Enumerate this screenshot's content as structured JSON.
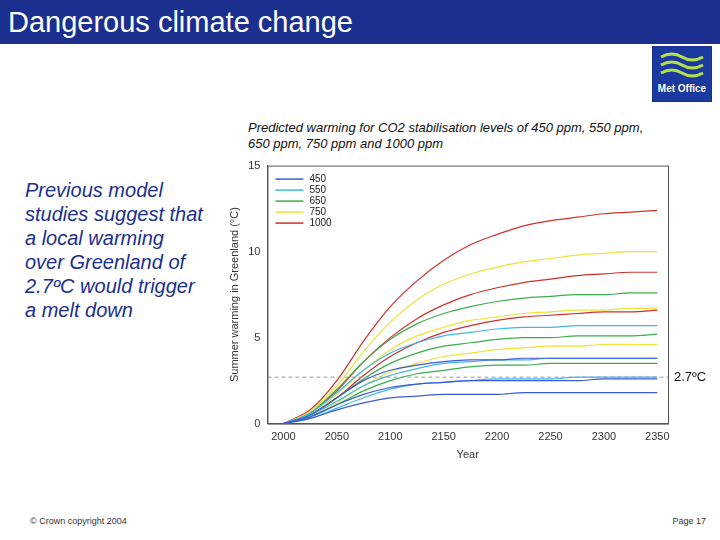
{
  "header": {
    "title": "Dangerous climate change",
    "logo": "Met Office"
  },
  "side_text": "Previous model studies suggest that a local warming over Greenland of 2.7ºC would trigger a melt down",
  "footer": {
    "left": "© Crown copyright 2004",
    "right": "Page 17"
  },
  "chart_data": {
    "type": "line",
    "title": "Predicted warming for CO2 stabilisation levels of 450 ppm, 550 ppm, 650 ppm, 750 ppm and 1000 ppm",
    "x_label": "Year",
    "y_label": "Summer warming in Greenland (°C)",
    "x": [
      2000,
      2025,
      2050,
      2075,
      2100,
      2125,
      2150,
      2175,
      2200,
      2225,
      2250,
      2275,
      2300,
      2325,
      2350
    ],
    "xlim": [
      1985,
      2360
    ],
    "xticks": [
      2000,
      2050,
      2100,
      2150,
      2200,
      2250,
      2300,
      2350
    ],
    "ylim": [
      0,
      15
    ],
    "yticks": [
      0,
      5,
      10,
      15
    ],
    "grid": false,
    "legend": "upper left",
    "annotation": {
      "value": 2.7,
      "label": "2.7ºC",
      "line_style": "dashed",
      "color": "#999999"
    },
    "series": [
      {
        "name": "450",
        "color": "#3b5bd6",
        "values": [
          0,
          0.5,
          1.5,
          2.5,
          3.1,
          3.4,
          3.6,
          3.7,
          3.7,
          3.8,
          3.8,
          3.8,
          3.8,
          3.8,
          3.8
        ]
      },
      {
        "name": "450",
        "color": "#3b5bd6",
        "values": [
          0,
          0.4,
          1.1,
          1.7,
          2.1,
          2.3,
          2.4,
          2.5,
          2.5,
          2.5,
          2.5,
          2.5,
          2.6,
          2.6,
          2.6
        ]
      },
      {
        "name": "450",
        "color": "#3b5bd6",
        "values": [
          0,
          0.3,
          0.8,
          1.2,
          1.5,
          1.6,
          1.7,
          1.7,
          1.7,
          1.8,
          1.8,
          1.8,
          1.8,
          1.8,
          1.8
        ]
      },
      {
        "name": "550",
        "color": "#3fb6e6",
        "values": [
          0,
          0.6,
          1.8,
          3.1,
          4.1,
          4.7,
          5.1,
          5.3,
          5.5,
          5.6,
          5.6,
          5.7,
          5.7,
          5.7,
          5.7
        ]
      },
      {
        "name": "550",
        "color": "#3fb6e6",
        "values": [
          0,
          0.5,
          1.3,
          2.2,
          2.8,
          3.2,
          3.5,
          3.6,
          3.7,
          3.7,
          3.8,
          3.8,
          3.8,
          3.8,
          3.8
        ]
      },
      {
        "name": "550",
        "color": "#3fb6e6",
        "values": [
          0,
          0.3,
          0.9,
          1.5,
          2.0,
          2.3,
          2.4,
          2.5,
          2.6,
          2.6,
          2.6,
          2.7,
          2.7,
          2.7,
          2.7
        ]
      },
      {
        "name": "650",
        "color": "#3cae4c",
        "values": [
          0,
          0.6,
          2.0,
          3.6,
          4.9,
          5.8,
          6.4,
          6.8,
          7.1,
          7.3,
          7.4,
          7.5,
          7.5,
          7.6,
          7.6
        ]
      },
      {
        "name": "650",
        "color": "#3cae4c",
        "values": [
          0,
          0.5,
          1.5,
          2.6,
          3.5,
          4.1,
          4.5,
          4.7,
          4.9,
          5.0,
          5.0,
          5.1,
          5.1,
          5.1,
          5.2
        ]
      },
      {
        "name": "650",
        "color": "#3cae4c",
        "values": [
          0,
          0.4,
          1.1,
          1.9,
          2.5,
          2.9,
          3.1,
          3.3,
          3.4,
          3.4,
          3.5,
          3.5,
          3.5,
          3.5,
          3.5
        ]
      },
      {
        "name": "750",
        "color": "#ece23a",
        "values": [
          0,
          0.7,
          2.2,
          4.2,
          5.9,
          7.2,
          8.1,
          8.7,
          9.1,
          9.4,
          9.6,
          9.8,
          9.9,
          10.0,
          10.0
        ]
      },
      {
        "name": "750",
        "color": "#ece23a",
        "values": [
          0,
          0.5,
          1.7,
          3.1,
          4.3,
          5.1,
          5.6,
          6.0,
          6.2,
          6.4,
          6.5,
          6.6,
          6.6,
          6.7,
          6.7
        ]
      },
      {
        "name": "750",
        "color": "#ece23a",
        "values": [
          0,
          0.4,
          1.2,
          2.2,
          3.0,
          3.5,
          3.9,
          4.1,
          4.3,
          4.4,
          4.5,
          4.5,
          4.6,
          4.6,
          4.6
        ]
      },
      {
        "name": "1000",
        "color": "#d0302c",
        "values": [
          0,
          0.8,
          2.5,
          4.8,
          6.8,
          8.3,
          9.5,
          10.4,
          11.0,
          11.5,
          11.8,
          12.0,
          12.2,
          12.3,
          12.4
        ]
      },
      {
        "name": "1000",
        "color": "#d0302c",
        "values": [
          0,
          0.6,
          1.9,
          3.6,
          5.0,
          6.1,
          6.9,
          7.5,
          7.9,
          8.2,
          8.4,
          8.6,
          8.7,
          8.8,
          8.8
        ]
      },
      {
        "name": "1000",
        "color": "#d0302c",
        "values": [
          0,
          0.5,
          1.5,
          2.8,
          3.9,
          4.7,
          5.3,
          5.7,
          6.0,
          6.2,
          6.3,
          6.4,
          6.5,
          6.5,
          6.6
        ]
      }
    ]
  }
}
